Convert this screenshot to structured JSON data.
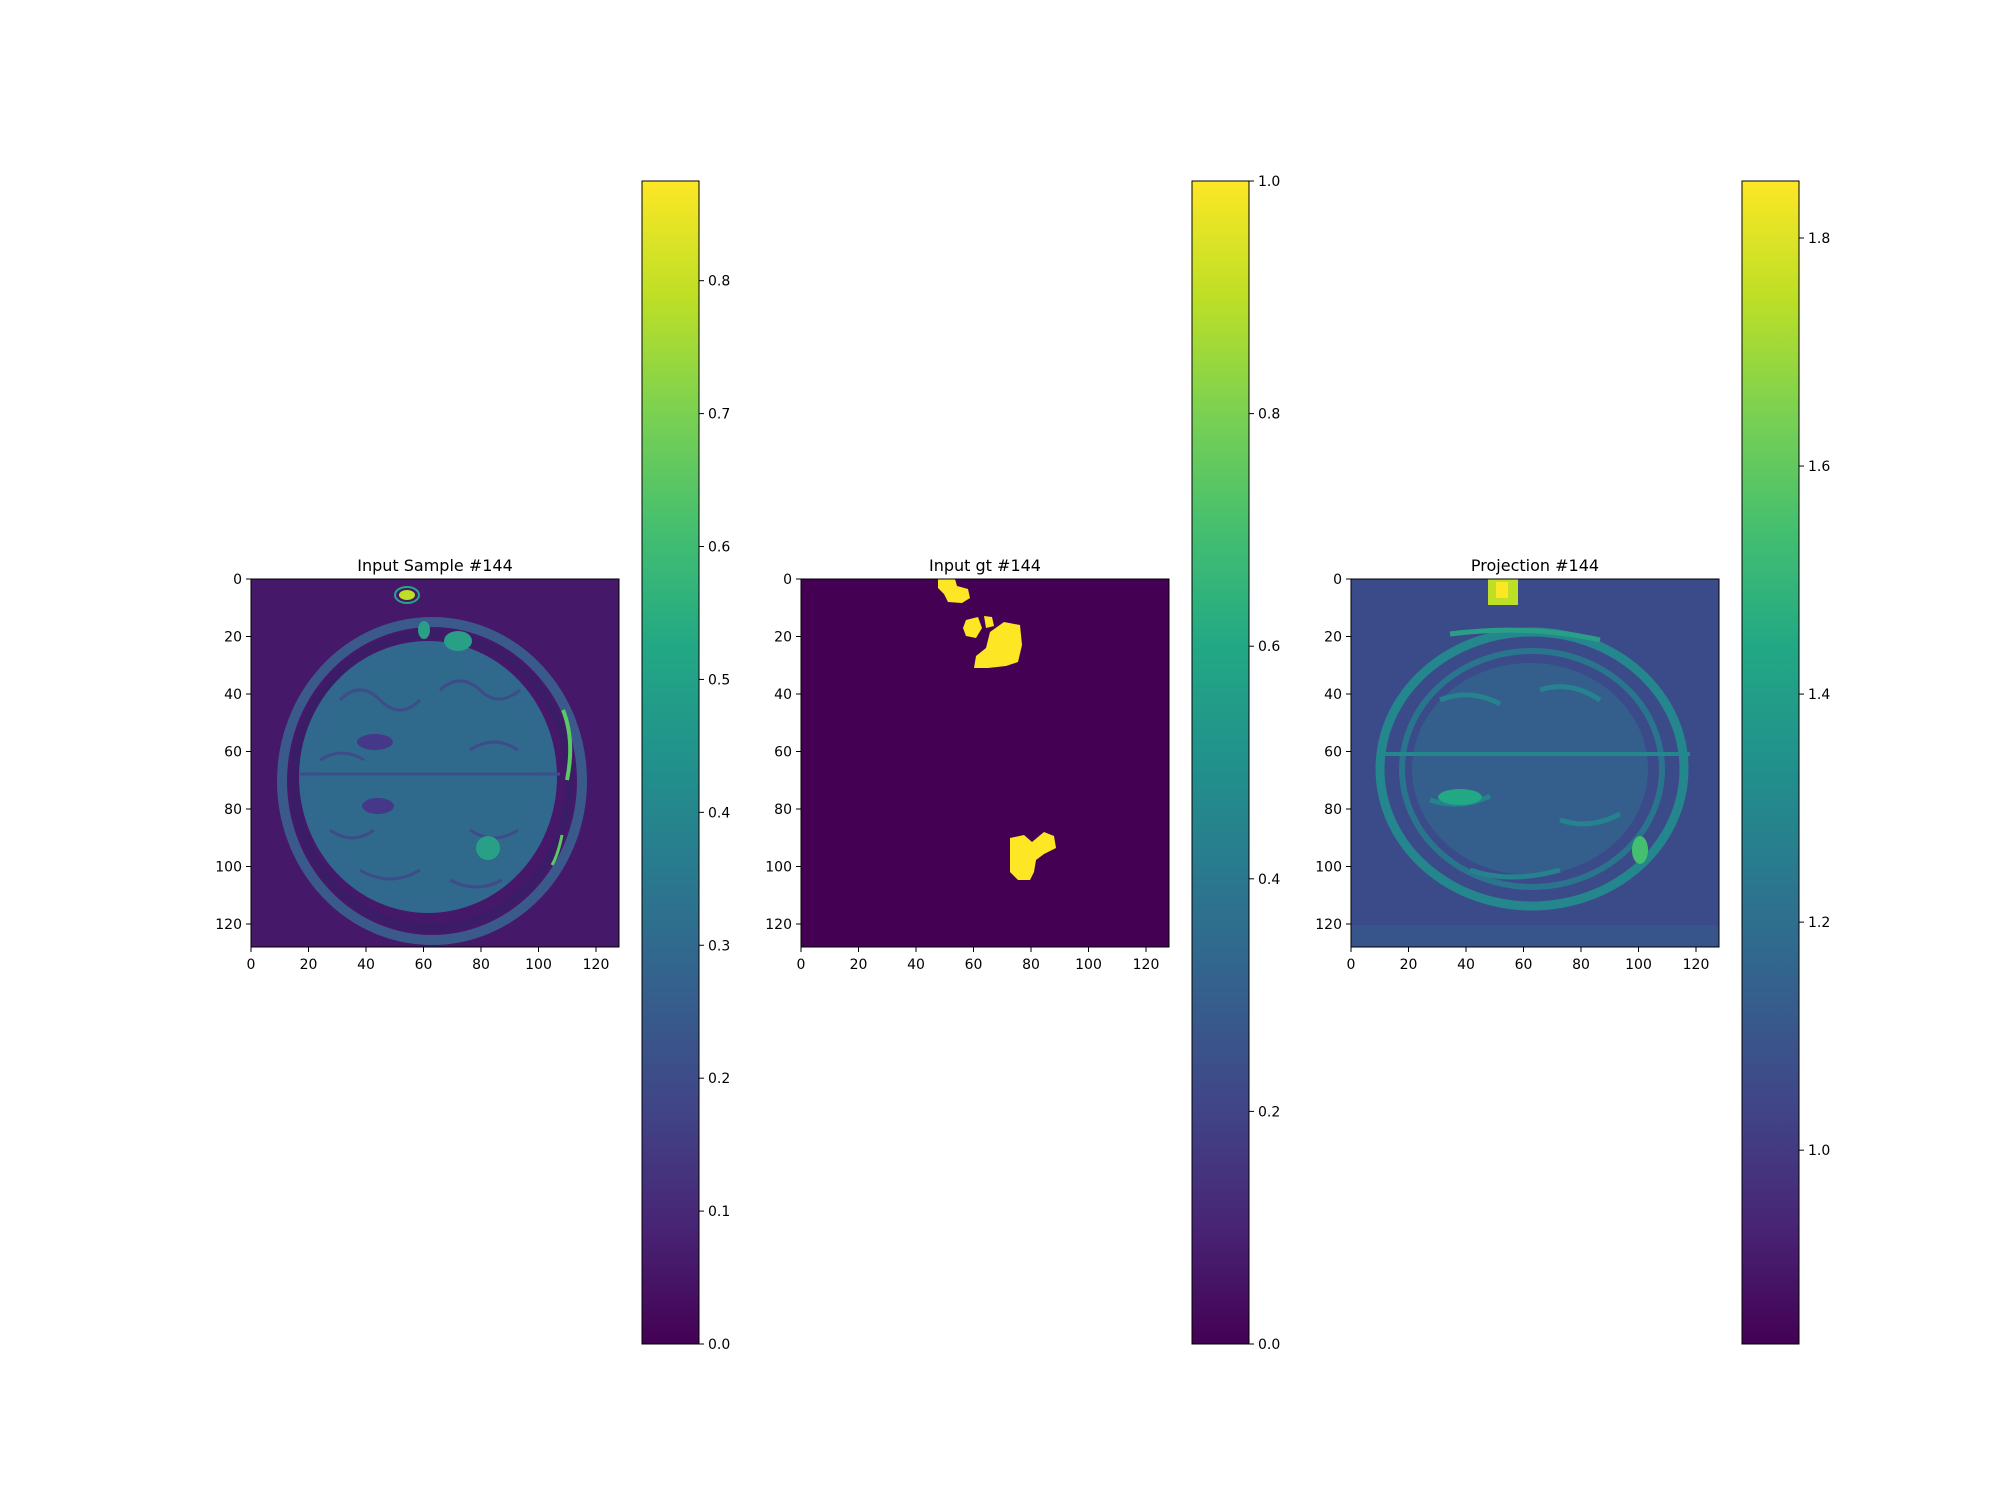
{
  "chart_data": [
    {
      "type": "heatmap",
      "title": "Input Sample #144",
      "xticks": [
        0,
        20,
        40,
        60,
        80,
        100,
        120
      ],
      "yticks": [
        0,
        20,
        40,
        60,
        80,
        100,
        120
      ],
      "xlim": [
        0,
        128
      ],
      "ylim": [
        128,
        0
      ],
      "colormap": "viridis",
      "colorbar": {
        "range": [
          0.0,
          0.875
        ],
        "ticks": [
          0.0,
          0.1,
          0.2,
          0.3,
          0.4,
          0.5,
          0.6,
          0.7,
          0.8
        ],
        "tick_labels": [
          "0.0",
          "0.1",
          "0.2",
          "0.3",
          "0.4",
          "0.5",
          "0.6",
          "0.7",
          "0.8"
        ]
      }
    },
    {
      "type": "heatmap",
      "title": "Input gt #144",
      "xticks": [
        0,
        20,
        40,
        60,
        80,
        100,
        120
      ],
      "yticks": [
        0,
        20,
        40,
        60,
        80,
        100,
        120
      ],
      "xlim": [
        0,
        128
      ],
      "ylim": [
        128,
        0
      ],
      "colormap": "viridis",
      "colorbar": {
        "range": [
          0.0,
          1.0
        ],
        "ticks": [
          0.0,
          0.2,
          0.4,
          0.6,
          0.8,
          1.0
        ],
        "tick_labels": [
          "0.0",
          "0.2",
          "0.4",
          "0.6",
          "0.8",
          "1.0"
        ]
      }
    },
    {
      "type": "heatmap",
      "title": "Projection #144",
      "xticks": [
        0,
        20,
        40,
        60,
        80,
        100,
        120
      ],
      "yticks": [
        0,
        20,
        40,
        60,
        80,
        100,
        120
      ],
      "xlim": [
        0,
        128
      ],
      "ylim": [
        128,
        0
      ],
      "colormap": "viridis",
      "colorbar": {
        "range": [
          0.83,
          1.85
        ],
        "ticks": [
          1.0,
          1.2,
          1.4,
          1.6,
          1.8
        ],
        "tick_labels": [
          "1.0",
          "1.2",
          "1.4",
          "1.6",
          "1.8"
        ]
      }
    }
  ]
}
